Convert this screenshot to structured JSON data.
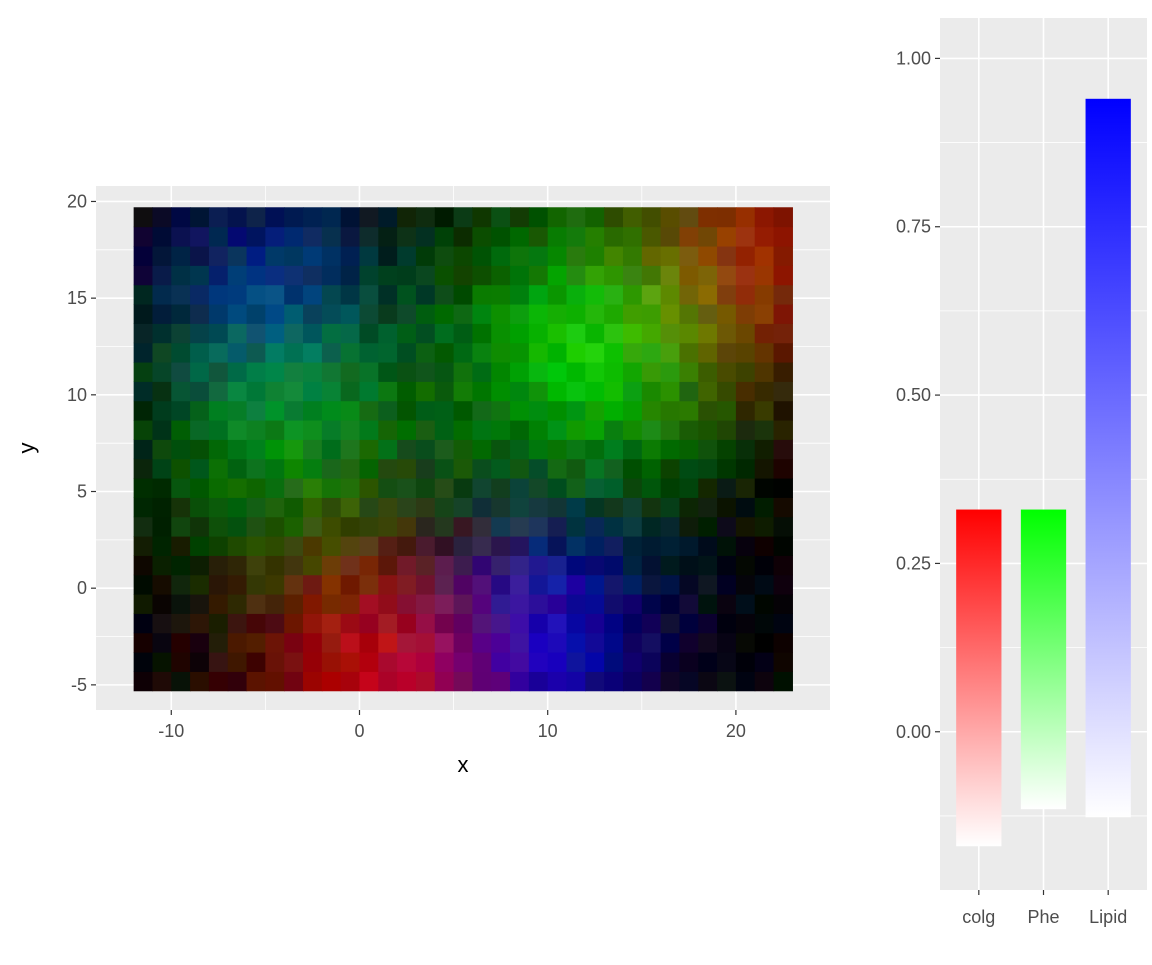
{
  "chart_data": [
    {
      "type": "heatmap",
      "title": "",
      "xlabel": "x",
      "ylabel": "y",
      "xlim": [
        -14,
        25
      ],
      "ylim": [
        -6.3,
        20.8
      ],
      "x_ticks": [
        -10,
        0,
        10,
        20
      ],
      "x_tick_labels": [
        "-10",
        "0",
        "10",
        "20"
      ],
      "y_ticks": [
        -5,
        0,
        5,
        10,
        15,
        20
      ],
      "y_tick_labels": [
        "-5",
        "0",
        "5",
        "10",
        "15",
        "20"
      ],
      "x_range": [
        -12,
        23
      ],
      "y_range": [
        -5.3,
        19.7
      ],
      "cols": 35,
      "rows": 25,
      "channels": [
        "colg",
        "Phe",
        "Lipid"
      ],
      "channel_colors": [
        "#ff0000",
        "#00ff00",
        "#0000ff"
      ],
      "grid": true,
      "description_regions": [
        {
          "channel": "Phe",
          "center": [
            12.5,
            12.5
          ],
          "strength": 0.85
        },
        {
          "channel": "Phe",
          "center": [
            -4,
            8.5
          ],
          "strength": 0.6
        },
        {
          "channel": "colg",
          "center": [
            1,
            -4
          ],
          "strength": 0.8
        },
        {
          "channel": "colg",
          "center": [
            21,
            17
          ],
          "strength": 0.65
        },
        {
          "channel": "Lipid",
          "center": [
            10,
            -2.5
          ],
          "strength": 0.8
        },
        {
          "channel": "Lipid",
          "center": [
            -5,
            15.5
          ],
          "strength": 0.55
        }
      ]
    },
    {
      "type": "bar",
      "title": "",
      "xlabel": "",
      "ylabel": "",
      "categories": [
        "colg",
        "Phe",
        "Lipid"
      ],
      "bar_min": [
        -0.17,
        -0.115,
        -0.127
      ],
      "bar_max": [
        0.33,
        0.33,
        0.94
      ],
      "bar_colors": [
        "#ff0000",
        "#00ff00",
        "#0000ff"
      ],
      "gradient": "white at min to full color at max",
      "ylim": [
        -0.235,
        1.06
      ],
      "y_ticks": [
        0,
        0.25,
        0.5,
        0.75,
        1
      ],
      "y_tick_labels": [
        "0.00",
        "0.25",
        "0.50",
        "0.75",
        "1.00"
      ],
      "grid": true
    }
  ]
}
